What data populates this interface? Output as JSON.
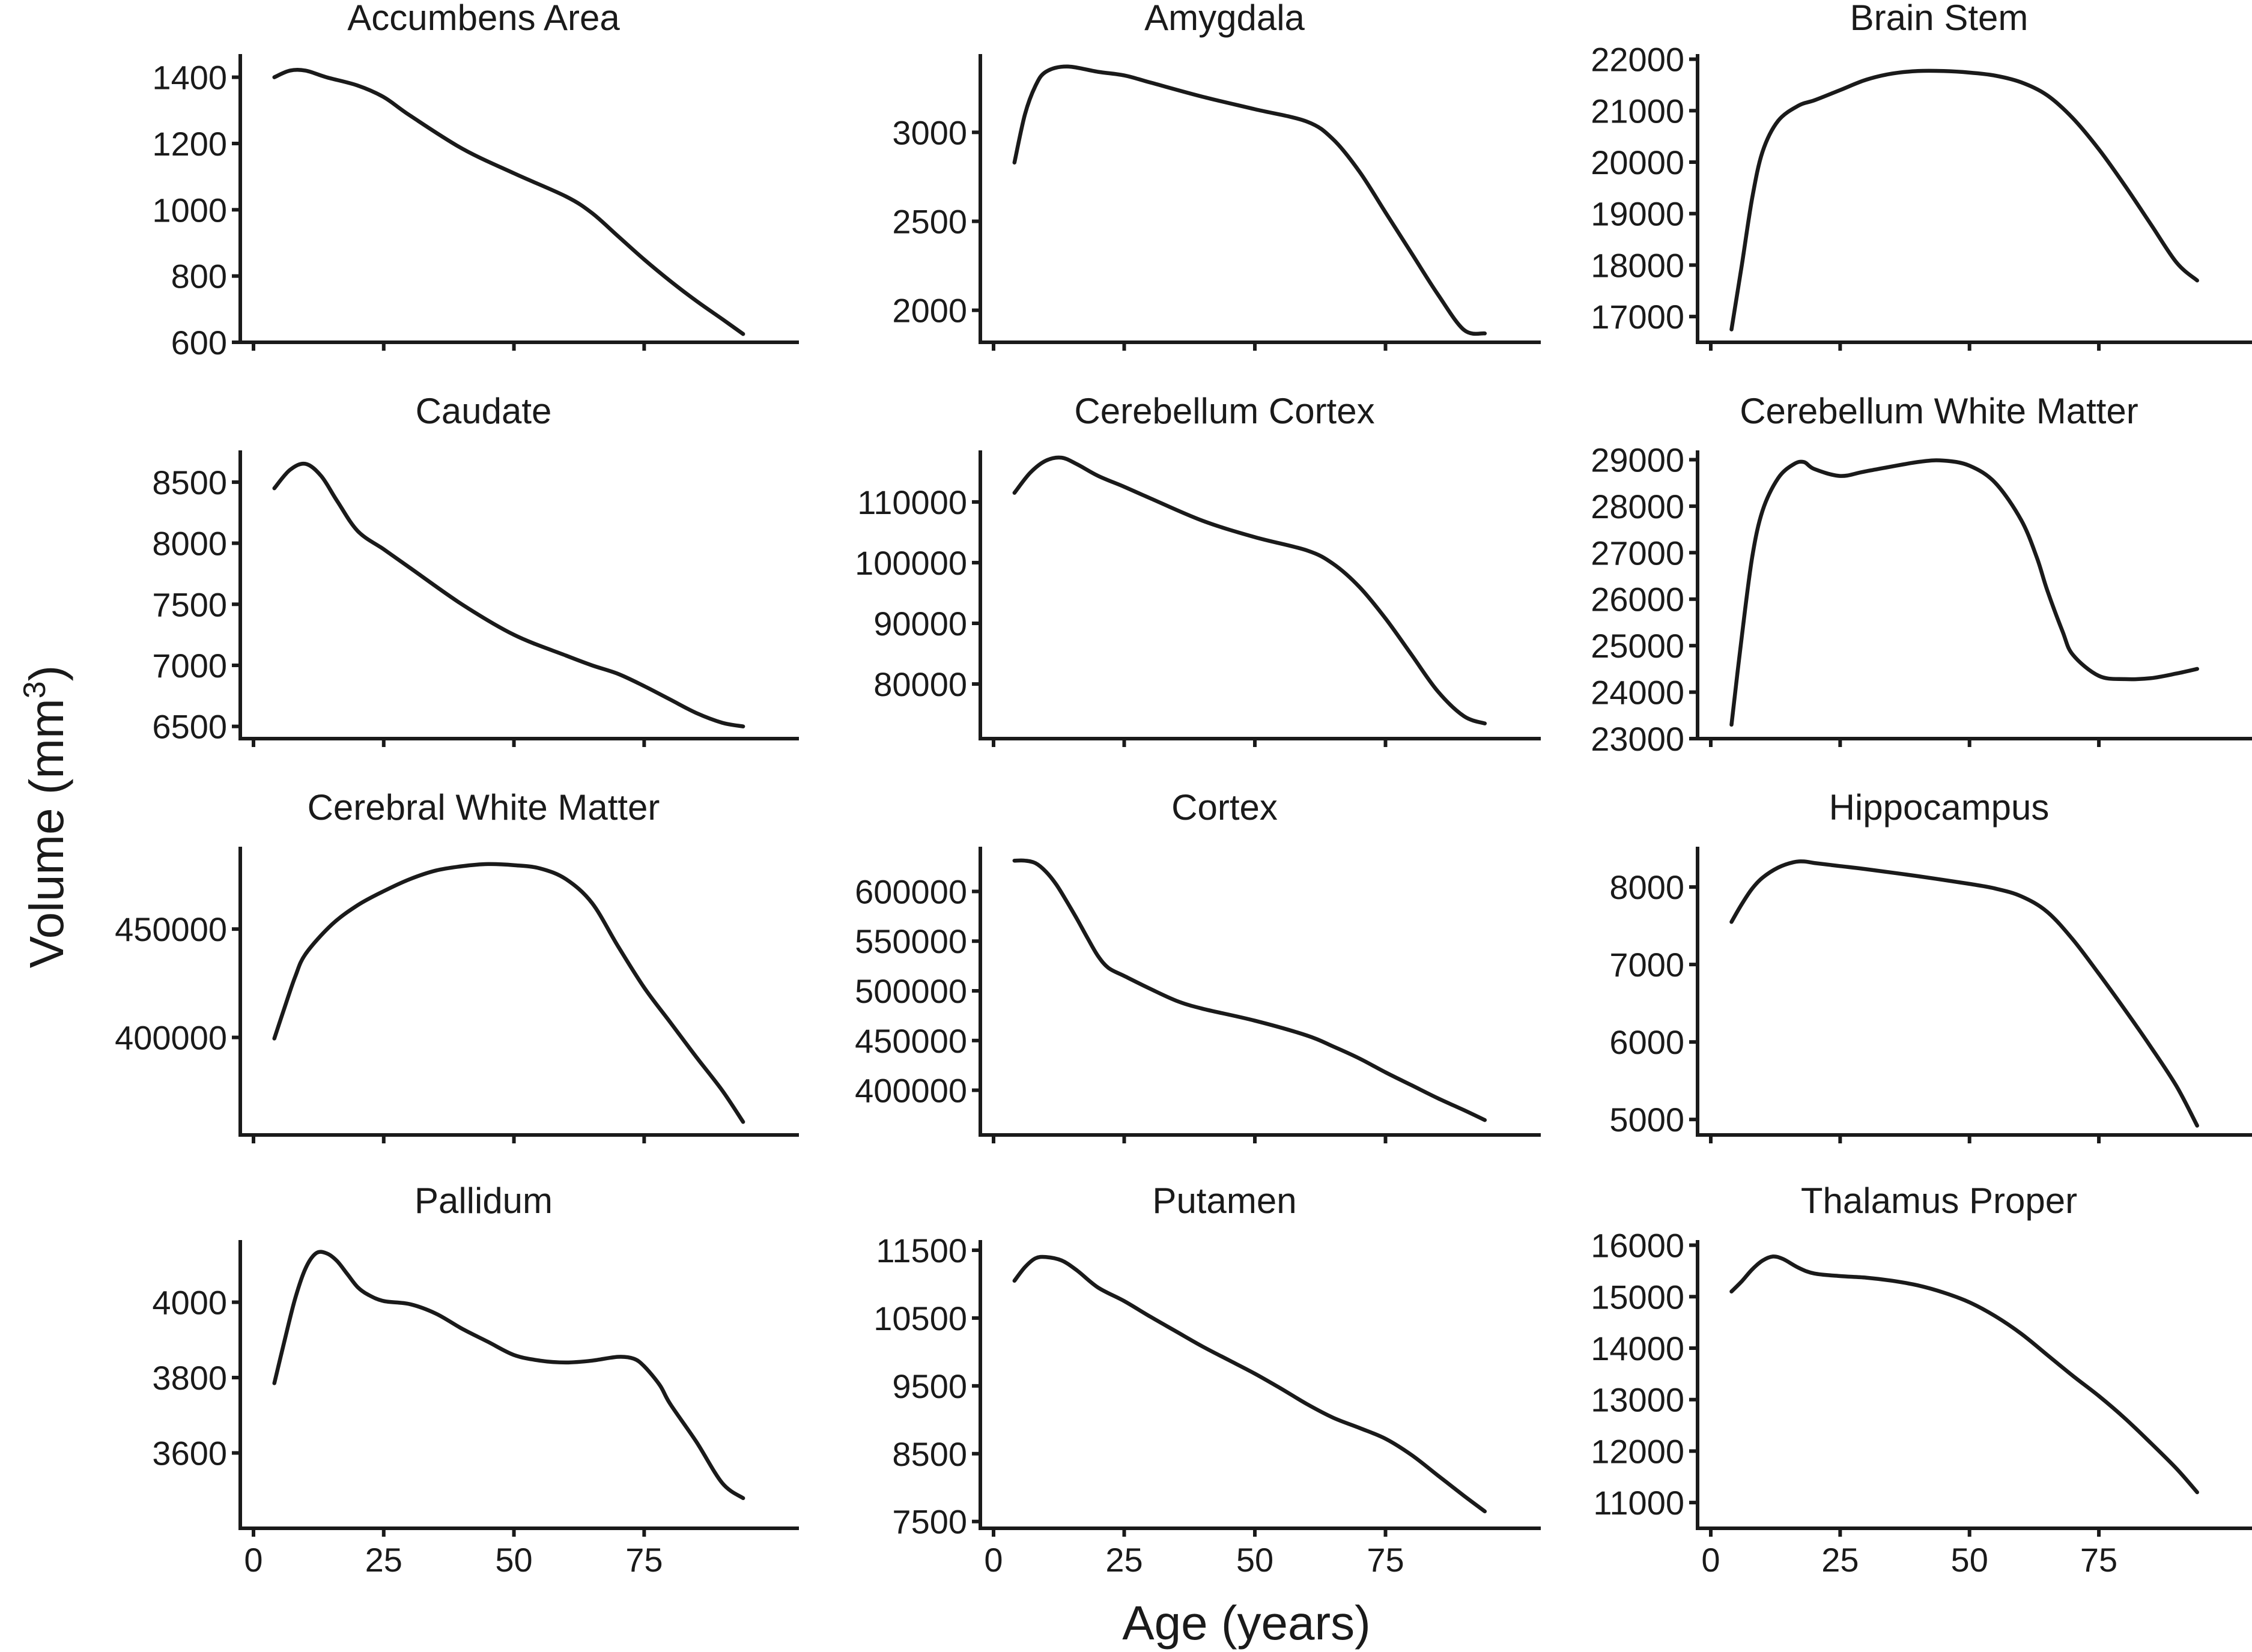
{
  "figure": {
    "xlabel": "Age (years)",
    "ylabel_main": "Volume (mm",
    "ylabel_sup": "3",
    "ylabel_tail": ")"
  },
  "chart_data": [
    {
      "type": "line",
      "title": "Accumbens Area",
      "xlim": [
        0,
        100
      ],
      "ylim": [
        600,
        1470
      ],
      "xticks": [
        0,
        25,
        50,
        75
      ],
      "yticks": [
        600,
        800,
        1000,
        1200,
        1400
      ],
      "ytick_labels": [
        "600",
        "800",
        "1000",
        "1200",
        "1400"
      ],
      "x": [
        4,
        7,
        10,
        14,
        20,
        25,
        30,
        40,
        50,
        60,
        65,
        70,
        75,
        80,
        85,
        90,
        94
      ],
      "y": [
        1400,
        1420,
        1420,
        1400,
        1375,
        1340,
        1285,
        1185,
        1110,
        1040,
        990,
        920,
        850,
        785,
        725,
        670,
        625
      ]
    },
    {
      "type": "line",
      "title": "Amygdala",
      "xlim": [
        0,
        100
      ],
      "ylim": [
        1820,
        3440
      ],
      "xticks": [
        0,
        25,
        50,
        75
      ],
      "yticks": [
        2000,
        2500,
        3000
      ],
      "ytick_labels": [
        "2000",
        "2500",
        "3000"
      ],
      "x": [
        4,
        6,
        8,
        10,
        14,
        20,
        25,
        30,
        40,
        50,
        60,
        65,
        70,
        75,
        80,
        85,
        90,
        94
      ],
      "y": [
        2830,
        3100,
        3260,
        3340,
        3370,
        3340,
        3320,
        3280,
        3200,
        3130,
        3060,
        2960,
        2780,
        2550,
        2320,
        2090,
        1890,
        1870
      ],
      "note": "smoothed"
    },
    {
      "type": "line",
      "title": "Brain Stem",
      "xlim": [
        0,
        100
      ],
      "ylim": [
        16500,
        22100
      ],
      "xticks": [
        0,
        25,
        50,
        75
      ],
      "yticks": [
        17000,
        18000,
        19000,
        20000,
        21000,
        22000
      ],
      "ytick_labels": [
        "17000",
        "18000",
        "19000",
        "20000",
        "21000",
        "22000"
      ],
      "x": [
        4,
        6,
        8,
        10,
        13,
        17,
        20,
        25,
        30,
        35,
        40,
        45,
        50,
        55,
        60,
        65,
        70,
        75,
        80,
        85,
        90,
        94
      ],
      "y": [
        16750,
        18000,
        19300,
        20200,
        20800,
        21100,
        21200,
        21400,
        21600,
        21720,
        21770,
        21770,
        21740,
        21680,
        21550,
        21300,
        20850,
        20250,
        19550,
        18800,
        18050,
        17700
      ]
    },
    {
      "type": "line",
      "title": "Caudate",
      "xlim": [
        0,
        100
      ],
      "ylim": [
        6400,
        8760
      ],
      "xticks": [
        0,
        25,
        50,
        75
      ],
      "yticks": [
        6500,
        7000,
        7500,
        8000,
        8500
      ],
      "ytick_labels": [
        "6500",
        "7000",
        "7500",
        "8000",
        "8500"
      ],
      "x": [
        4,
        7,
        10,
        13,
        16,
        20,
        25,
        30,
        40,
        50,
        60,
        65,
        70,
        75,
        80,
        85,
        90,
        94
      ],
      "y": [
        8450,
        8600,
        8650,
        8550,
        8350,
        8100,
        7950,
        7800,
        7500,
        7250,
        7080,
        7000,
        6930,
        6830,
        6720,
        6610,
        6530,
        6500
      ]
    },
    {
      "type": "line",
      "title": "Cerebellum Cortex",
      "xlim": [
        0,
        100
      ],
      "ylim": [
        71000,
        118500
      ],
      "xticks": [
        0,
        25,
        50,
        75
      ],
      "yticks": [
        80000,
        90000,
        100000,
        110000
      ],
      "ytick_labels": [
        "80000",
        "90000",
        "100000",
        "110000"
      ],
      "x": [
        4,
        7,
        10,
        13,
        16,
        20,
        25,
        30,
        40,
        50,
        60,
        65,
        70,
        75,
        80,
        85,
        90,
        94
      ],
      "y": [
        111500,
        114800,
        116800,
        117300,
        116200,
        114300,
        112500,
        110600,
        106900,
        104200,
        102000,
        99800,
        96000,
        90800,
        84800,
        78800,
        74700,
        73500
      ]
    },
    {
      "type": "line",
      "title": "Cerebellum White Matter",
      "xlim": [
        0,
        100
      ],
      "ylim": [
        23000,
        29200
      ],
      "xticks": [
        0,
        25,
        50,
        75
      ],
      "yticks": [
        23000,
        24000,
        25000,
        26000,
        27000,
        28000,
        29000
      ],
      "ytick_labels": [
        "23000",
        "24000",
        "25000",
        "26000",
        "27000",
        "28000",
        "29000"
      ],
      "x": [
        4,
        6,
        8,
        10,
        13,
        16,
        18,
        20,
        25,
        30,
        40,
        45,
        50,
        55,
        60,
        63,
        65,
        68,
        70,
        75,
        80,
        85,
        90,
        94
      ],
      "y": [
        23300,
        25200,
        26900,
        27900,
        28600,
        28900,
        28950,
        28800,
        28650,
        28750,
        28950,
        28980,
        28870,
        28500,
        27700,
        26900,
        26200,
        25300,
        24800,
        24350,
        24280,
        24300,
        24400,
        24500
      ]
    },
    {
      "type": "line",
      "title": "Cerebral White Matter",
      "xlim": [
        0,
        100
      ],
      "ylim": [
        355000,
        488000
      ],
      "xticks": [
        0,
        25,
        50,
        75
      ],
      "yticks": [
        400000,
        450000
      ],
      "ytick_labels": [
        "400000",
        "450000"
      ],
      "x": [
        4,
        6,
        8,
        10,
        15,
        20,
        25,
        30,
        35,
        40,
        45,
        50,
        55,
        60,
        65,
        70,
        75,
        80,
        85,
        90,
        94
      ],
      "y": [
        399500,
        414000,
        428000,
        438500,
        452000,
        461000,
        467500,
        473000,
        477000,
        479000,
        480000,
        479500,
        478000,
        473000,
        462000,
        442000,
        423000,
        407000,
        391000,
        375500,
        361000
      ]
    },
    {
      "type": "line",
      "title": "Cortex",
      "xlim": [
        0,
        100
      ],
      "ylim": [
        355000,
        645000
      ],
      "xticks": [
        0,
        25,
        50,
        75
      ],
      "yticks": [
        400000,
        450000,
        500000,
        550000,
        600000
      ],
      "ytick_labels": [
        "400000",
        "450000",
        "500000",
        "550000",
        "600000"
      ],
      "x": [
        4,
        6,
        8,
        10,
        12,
        14,
        16,
        18,
        20,
        22,
        25,
        30,
        35,
        40,
        50,
        60,
        65,
        70,
        75,
        80,
        85,
        90,
        94
      ],
      "y": [
        631000,
        631000,
        628500,
        620000,
        607000,
        590000,
        572000,
        553000,
        535000,
        523000,
        515000,
        502000,
        490000,
        482000,
        470000,
        455000,
        444000,
        432000,
        418000,
        405000,
        392000,
        380000,
        370000
      ]
    },
    {
      "type": "line",
      "title": "Hippocampus",
      "xlim": [
        0,
        100
      ],
      "ylim": [
        4800,
        8520
      ],
      "xticks": [
        0,
        25,
        50,
        75
      ],
      "yticks": [
        5000,
        6000,
        7000,
        8000
      ],
      "ytick_labels": [
        "5000",
        "6000",
        "7000",
        "8000"
      ],
      "x": [
        4,
        6,
        8,
        10,
        13,
        16,
        18,
        20,
        25,
        30,
        40,
        50,
        55,
        60,
        65,
        70,
        75,
        80,
        85,
        90,
        94
      ],
      "y": [
        7550,
        7780,
        7980,
        8120,
        8250,
        8320,
        8330,
        8310,
        8270,
        8230,
        8140,
        8040,
        7980,
        7880,
        7680,
        7320,
        6880,
        6420,
        5940,
        5430,
        4920
      ]
    },
    {
      "type": "line",
      "title": "Pallidum",
      "xlim": [
        0,
        100
      ],
      "ylim": [
        3400,
        4165
      ],
      "xticks": [
        0,
        25,
        50,
        75
      ],
      "yticks": [
        3600,
        3800,
        4000
      ],
      "ytick_labels": [
        "3600",
        "3800",
        "4000"
      ],
      "x": [
        4,
        6,
        8,
        10,
        12,
        14,
        16,
        18,
        20,
        22,
        25,
        30,
        35,
        40,
        45,
        50,
        55,
        60,
        65,
        70,
        73,
        75,
        78,
        80,
        85,
        90,
        94
      ],
      "y": [
        3785,
        3900,
        4010,
        4090,
        4130,
        4130,
        4110,
        4075,
        4040,
        4020,
        4003,
        3995,
        3970,
        3930,
        3895,
        3860,
        3845,
        3840,
        3845,
        3855,
        3850,
        3830,
        3780,
        3730,
        3630,
        3520,
        3480
      ]
    },
    {
      "type": "line",
      "title": "Putamen",
      "xlim": [
        0,
        100
      ],
      "ylim": [
        7400,
        11650
      ],
      "xticks": [
        0,
        25,
        50,
        75
      ],
      "yticks": [
        7500,
        8500,
        9500,
        10500,
        11500
      ],
      "ytick_labels": [
        "7500",
        "8500",
        "9500",
        "10500",
        "11500"
      ],
      "x": [
        4,
        6,
        8,
        10,
        13,
        16,
        20,
        25,
        30,
        35,
        40,
        45,
        50,
        55,
        60,
        65,
        70,
        75,
        80,
        85,
        90,
        94
      ],
      "y": [
        11050,
        11250,
        11380,
        11400,
        11350,
        11200,
        10950,
        10750,
        10520,
        10300,
        10080,
        9880,
        9680,
        9460,
        9230,
        9030,
        8880,
        8720,
        8480,
        8180,
        7880,
        7650
      ]
    },
    {
      "type": "line",
      "title": "Thalamus Proper",
      "xlim": [
        0,
        100
      ],
      "ylim": [
        10500,
        16100
      ],
      "xticks": [
        0,
        25,
        50,
        75
      ],
      "yticks": [
        11000,
        12000,
        13000,
        14000,
        15000,
        16000
      ],
      "ytick_labels": [
        "11000",
        "12000",
        "13000",
        "14000",
        "15000",
        "16000"
      ],
      "x": [
        4,
        6,
        8,
        10,
        12,
        14,
        17,
        20,
        25,
        30,
        35,
        40,
        45,
        50,
        55,
        60,
        65,
        70,
        75,
        80,
        85,
        90,
        94
      ],
      "y": [
        15100,
        15300,
        15530,
        15700,
        15780,
        15730,
        15560,
        15450,
        15400,
        15370,
        15310,
        15220,
        15080,
        14890,
        14620,
        14280,
        13870,
        13460,
        13070,
        12640,
        12160,
        11660,
        11200
      ]
    }
  ]
}
